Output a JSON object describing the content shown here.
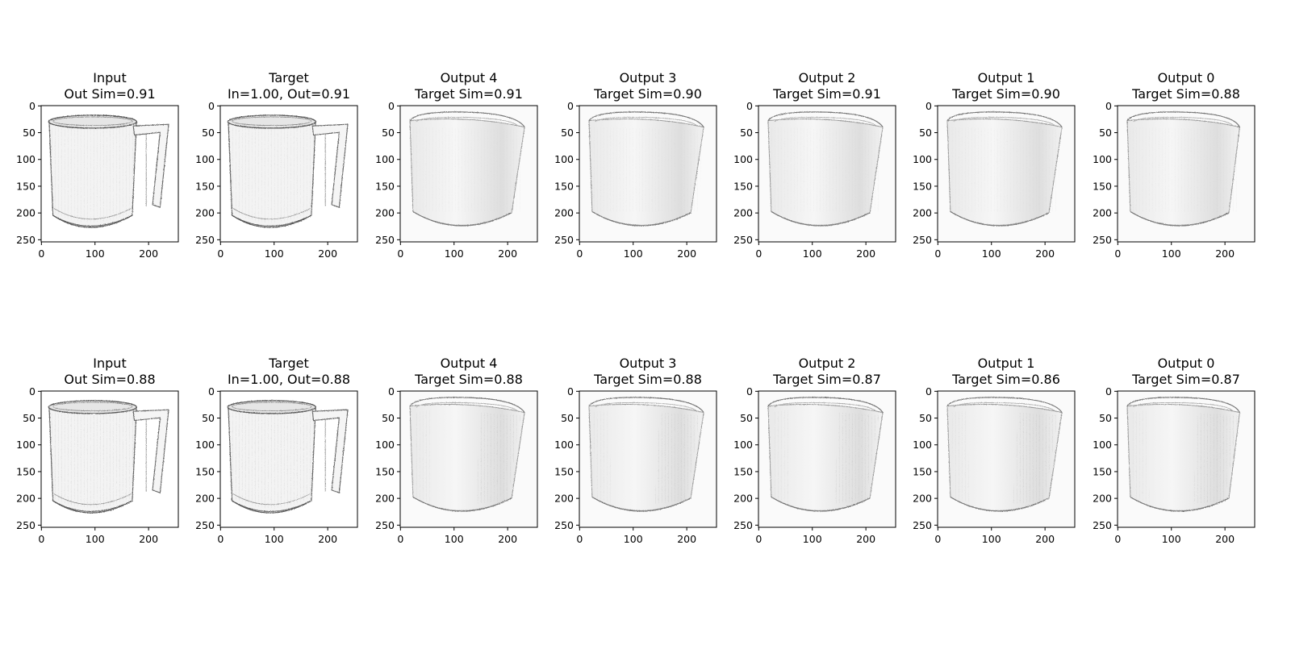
{
  "figure": {
    "axis": {
      "xticks": [
        "0",
        "100",
        "200"
      ],
      "yticks": [
        "0",
        "50",
        "100",
        "150",
        "200",
        "250"
      ]
    },
    "rows": [
      {
        "panels": [
          {
            "title_line1": "Input",
            "title_line2": "Out Sim=0.91",
            "kind": "input"
          },
          {
            "title_line1": "Target",
            "title_line2": "In=1.00, Out=0.91",
            "kind": "input"
          },
          {
            "title_line1": "Output 4",
            "title_line2": "Target Sim=0.91",
            "kind": "output"
          },
          {
            "title_line1": "Output 3",
            "title_line2": "Target Sim=0.90",
            "kind": "output"
          },
          {
            "title_line1": "Output 2",
            "title_line2": "Target Sim=0.91",
            "kind": "output"
          },
          {
            "title_line1": "Output 1",
            "title_line2": "Target Sim=0.90",
            "kind": "output"
          },
          {
            "title_line1": "Output 0",
            "title_line2": "Target Sim=0.88",
            "kind": "output"
          }
        ]
      },
      {
        "panels": [
          {
            "title_line1": "Input",
            "title_line2": "Out Sim=0.88",
            "kind": "input"
          },
          {
            "title_line1": "Target",
            "title_line2": "In=1.00, Out=0.88",
            "kind": "input"
          },
          {
            "title_line1": "Output 4",
            "title_line2": "Target Sim=0.88",
            "kind": "output"
          },
          {
            "title_line1": "Output 3",
            "title_line2": "Target Sim=0.88",
            "kind": "output"
          },
          {
            "title_line1": "Output 2",
            "title_line2": "Target Sim=0.87",
            "kind": "output"
          },
          {
            "title_line1": "Output 1",
            "title_line2": "Target Sim=0.86",
            "kind": "output"
          },
          {
            "title_line1": "Output 0",
            "title_line2": "Target Sim=0.87",
            "kind": "output"
          }
        ]
      }
    ]
  }
}
